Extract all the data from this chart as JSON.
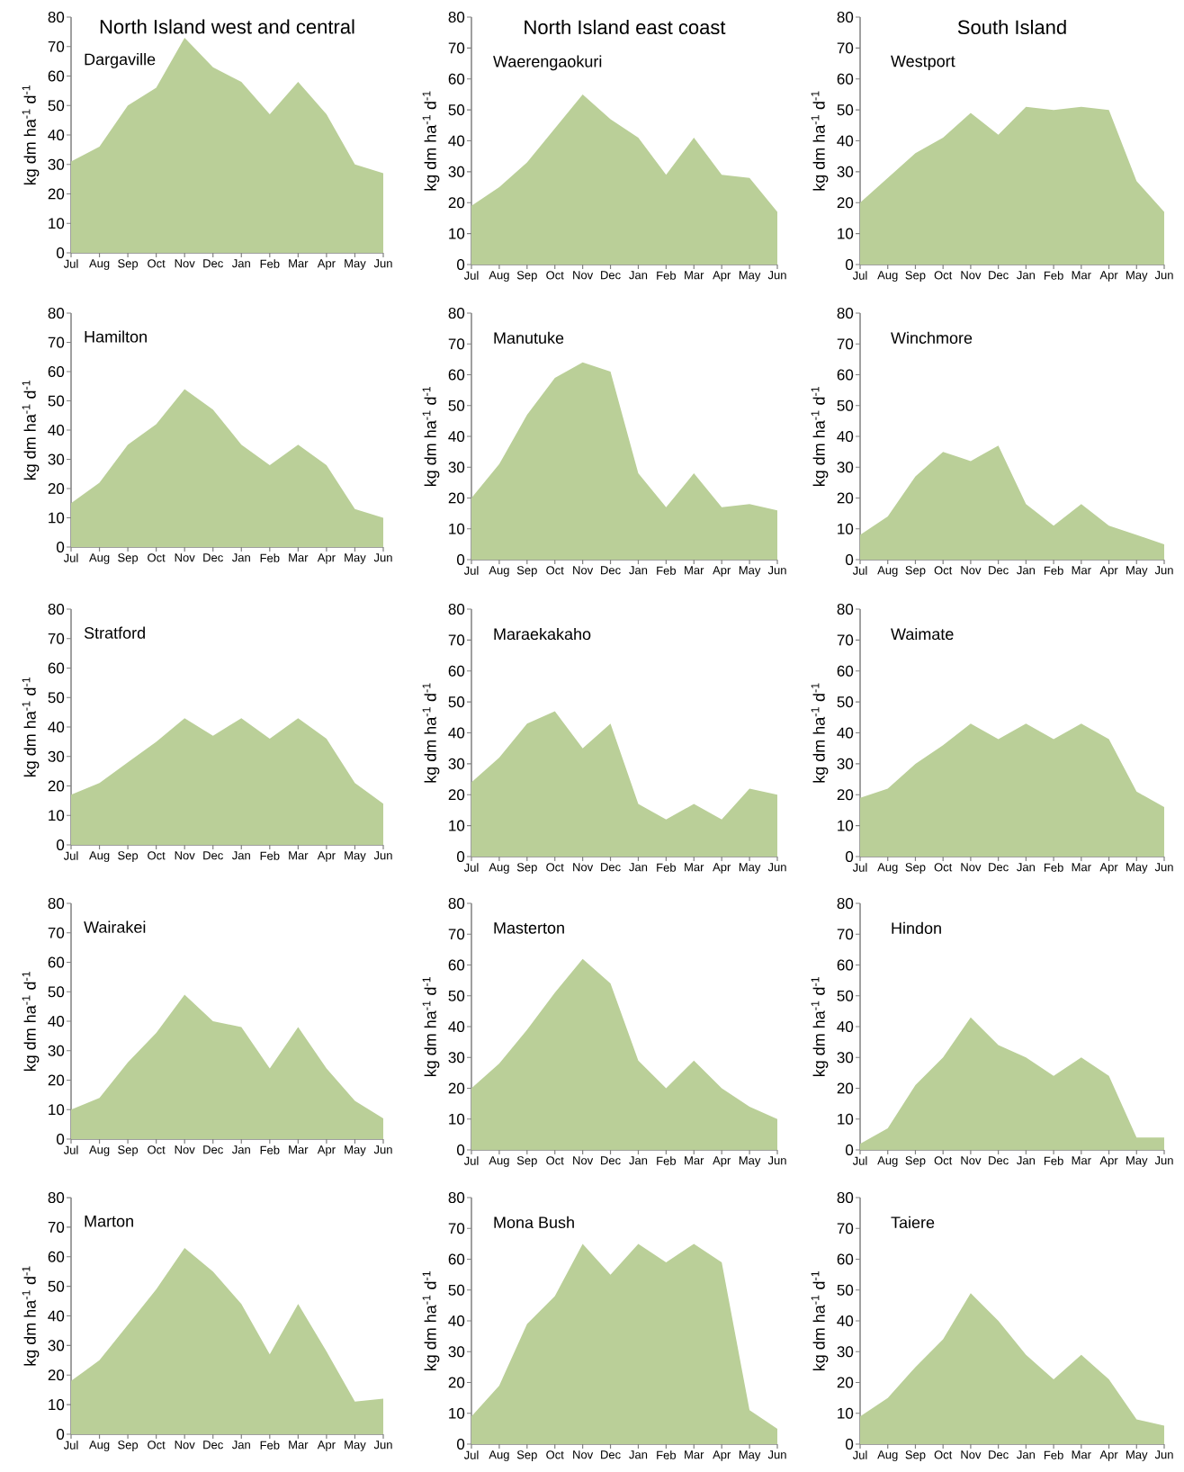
{
  "chart_data": [
    {
      "type": "area",
      "title": "North Island west and central",
      "subtitle": "Dargaville",
      "ylabel": "kg dm ha$^{-1}$ d$^{-1}$",
      "categories": [
        "Jul",
        "Aug",
        "Sep",
        "Oct",
        "Nov",
        "Dec",
        "Jan",
        "Feb",
        "Mar",
        "Apr",
        "May",
        "Jun"
      ],
      "values": [
        31,
        36,
        50,
        56,
        73,
        63,
        58,
        47,
        58,
        47,
        30,
        27
      ],
      "color": "#bacf98",
      "ylim": [
        0,
        80
      ],
      "yticks": [
        0,
        10,
        20,
        30,
        40,
        50,
        60,
        70,
        80
      ]
    },
    {
      "type": "area",
      "title": "North Island east coast",
      "subtitle": "Waerengaokuri",
      "ylabel": "kg dm ha$^{-1}$ d$^{-1}$",
      "categories": [
        "Jul",
        "Aug",
        "Sep",
        "Oct",
        "Nov",
        "Dec",
        "Jan",
        "Feb",
        "Mar",
        "Apr",
        "May",
        "Jun"
      ],
      "values": [
        19,
        25,
        33,
        44,
        55,
        47,
        41,
        29,
        41,
        29,
        28,
        17
      ],
      "color": "#bacf98",
      "ylim": [
        0,
        80
      ],
      "yticks": [
        0,
        10,
        20,
        30,
        40,
        50,
        60,
        70,
        80
      ]
    },
    {
      "type": "area",
      "title": "South Island",
      "subtitle": "Westport",
      "ylabel": "kg dm ha$^{-1}$ d$^{-1}$",
      "categories": [
        "Jul",
        "Aug",
        "Sep",
        "Oct",
        "Nov",
        "Dec",
        "Jan",
        "Feb",
        "Mar",
        "Apr",
        "May",
        "Jun"
      ],
      "values": [
        20,
        28,
        36,
        41,
        49,
        42,
        51,
        50,
        51,
        50,
        27,
        17
      ],
      "color": "#bacf98",
      "ylim": [
        0,
        80
      ],
      "yticks": [
        0,
        10,
        20,
        30,
        40,
        50,
        60,
        70,
        80
      ]
    },
    {
      "type": "area",
      "title": "Hamilton",
      "ylabel": "kg dm ha$^{-1}$ d$^{-1}$",
      "categories": [
        "Jul",
        "Aug",
        "Sep",
        "Oct",
        "Nov",
        "Dec",
        "Jan",
        "Feb",
        "Mar",
        "Apr",
        "May",
        "Jun"
      ],
      "values": [
        15,
        22,
        35,
        42,
        54,
        47,
        35,
        28,
        35,
        28,
        13,
        10
      ],
      "color": "#bacf98",
      "ylim": [
        0,
        80
      ],
      "yticks": [
        0,
        10,
        20,
        30,
        40,
        50,
        60,
        70,
        80
      ]
    },
    {
      "type": "area",
      "title": "Manutuke",
      "ylabel": "kg dm ha$^{-1}$ d$^{-1}$",
      "categories": [
        "Jul",
        "Aug",
        "Sep",
        "Oct",
        "Nov",
        "Dec",
        "Jan",
        "Feb",
        "Mar",
        "Apr",
        "May",
        "Jun"
      ],
      "values": [
        20,
        31,
        47,
        59,
        64,
        61,
        28,
        17,
        28,
        17,
        18,
        16
      ],
      "color": "#bacf98",
      "ylim": [
        0,
        80
      ],
      "yticks": [
        0,
        10,
        20,
        30,
        40,
        50,
        60,
        70,
        80
      ]
    },
    {
      "type": "area",
      "title": "Winchmore",
      "ylabel": "kg dm ha$^{-1}$ d$^{-1}$",
      "categories": [
        "Jul",
        "Aug",
        "Sep",
        "Oct",
        "Nov",
        "Dec",
        "Jan",
        "Feb",
        "Mar",
        "Apr",
        "May",
        "Jun"
      ],
      "values": [
        8,
        14,
        27,
        35,
        32,
        37,
        18,
        11,
        18,
        11,
        8,
        5
      ],
      "color": "#bacf98",
      "ylim": [
        0,
        80
      ],
      "yticks": [
        0,
        10,
        20,
        30,
        40,
        50,
        60,
        70,
        80
      ]
    },
    {
      "type": "area",
      "title": "Stratford",
      "ylabel": "kg dm ha$^{-1}$ d$^{-1}$",
      "categories": [
        "Jul",
        "Aug",
        "Sep",
        "Oct",
        "Nov",
        "Dec",
        "Jan",
        "Feb",
        "Mar",
        "Apr",
        "May",
        "Jun"
      ],
      "values": [
        17,
        21,
        28,
        35,
        43,
        37,
        43,
        36,
        43,
        36,
        21,
        14
      ],
      "color": "#bacf98",
      "ylim": [
        0,
        80
      ],
      "yticks": [
        0,
        10,
        20,
        30,
        40,
        50,
        60,
        70,
        80
      ]
    },
    {
      "type": "area",
      "title": "Maraekakaho",
      "ylabel": "kg dm ha$^{-1}$ d$^{-1}$",
      "categories": [
        "Jul",
        "Aug",
        "Sep",
        "Oct",
        "Nov",
        "Dec",
        "Jan",
        "Feb",
        "Mar",
        "Apr",
        "May",
        "Jun"
      ],
      "values": [
        24,
        32,
        43,
        47,
        35,
        43,
        17,
        12,
        17,
        12,
        22,
        20
      ],
      "color": "#bacf98",
      "ylim": [
        0,
        80
      ],
      "yticks": [
        0,
        10,
        20,
        30,
        40,
        50,
        60,
        70,
        80
      ]
    },
    {
      "type": "area",
      "title": "Waimate",
      "ylabel": "kg dm ha$^{-1}$ d$^{-1}$",
      "categories": [
        "Jul",
        "Aug",
        "Sep",
        "Oct",
        "Nov",
        "Dec",
        "Jan",
        "Feb",
        "Mar",
        "Apr",
        "May",
        "Jun"
      ],
      "values": [
        19,
        22,
        30,
        36,
        43,
        38,
        43,
        38,
        43,
        38,
        21,
        16
      ],
      "color": "#bacf98",
      "ylim": [
        0,
        80
      ],
      "yticks": [
        0,
        10,
        20,
        30,
        40,
        50,
        60,
        70,
        80
      ]
    },
    {
      "type": "area",
      "title": "Wairakei",
      "ylabel": "kg dm ha$^{-1}$ d$^{-1}$",
      "categories": [
        "Jul",
        "Aug",
        "Sep",
        "Oct",
        "Nov",
        "Dec",
        "Jan",
        "Feb",
        "Mar",
        "Apr",
        "May",
        "Jun"
      ],
      "values": [
        10,
        14,
        26,
        36,
        49,
        40,
        38,
        24,
        38,
        24,
        13,
        7
      ],
      "color": "#bacf98",
      "ylim": [
        0,
        80
      ],
      "yticks": [
        0,
        10,
        20,
        30,
        40,
        50,
        60,
        70,
        80
      ]
    },
    {
      "type": "area",
      "title": "Masterton",
      "ylabel": "kg dm ha$^{-1}$ d$^{-1}$",
      "categories": [
        "Jul",
        "Aug",
        "Sep",
        "Oct",
        "Nov",
        "Dec",
        "Jan",
        "Feb",
        "Mar",
        "Apr",
        "May",
        "Jun"
      ],
      "values": [
        20,
        28,
        39,
        51,
        62,
        54,
        29,
        20,
        29,
        20,
        14,
        10
      ],
      "color": "#bacf98",
      "ylim": [
        0,
        80
      ],
      "yticks": [
        0,
        10,
        20,
        30,
        40,
        50,
        60,
        70,
        80
      ]
    },
    {
      "type": "area",
      "title": "Hindon",
      "ylabel": "kg dm ha$^{-1}$ d$^{-1}$",
      "categories": [
        "Jul",
        "Aug",
        "Sep",
        "Oct",
        "Nov",
        "Dec",
        "Jan",
        "Feb",
        "Mar",
        "Apr",
        "May",
        "Jun"
      ],
      "values": [
        2,
        7,
        21,
        30,
        43,
        34,
        30,
        24,
        30,
        24,
        4,
        4
      ],
      "color": "#bacf98",
      "ylim": [
        0,
        80
      ],
      "yticks": [
        0,
        10,
        20,
        30,
        40,
        50,
        60,
        70,
        80
      ]
    },
    {
      "type": "area",
      "title": "Marton",
      "ylabel": "kg dm ha$^{-1}$ d$^{-1}$",
      "categories": [
        "Jul",
        "Aug",
        "Sep",
        "Oct",
        "Nov",
        "Dec",
        "Jan",
        "Feb",
        "Mar",
        "Apr",
        "May",
        "Jun"
      ],
      "values": [
        18,
        25,
        37,
        49,
        63,
        55,
        44,
        27,
        44,
        28,
        11,
        12
      ],
      "color": "#bacf98",
      "ylim": [
        0,
        80
      ],
      "yticks": [
        0,
        10,
        20,
        30,
        40,
        50,
        60,
        70,
        80
      ]
    },
    {
      "type": "area",
      "title": "Mona Bush",
      "ylabel": "kg dm ha$^{-1}$ d$^{-1}$",
      "categories": [
        "Jul",
        "Aug",
        "Sep",
        "Oct",
        "Nov",
        "Dec",
        "Jan",
        "Feb",
        "Mar",
        "Apr",
        "May",
        "Jun"
      ],
      "values": [
        9,
        19,
        39,
        48,
        65,
        55,
        65,
        59,
        65,
        59,
        11,
        5
      ],
      "color": "#bacf98",
      "ylim": [
        0,
        80
      ],
      "yticks": [
        0,
        10,
        20,
        30,
        40,
        50,
        60,
        70,
        80
      ]
    },
    {
      "type": "area",
      "title": "Taiere",
      "ylabel": "kg dm ha$^{-1}$ d$^{-1}$",
      "categories": [
        "Jul",
        "Aug",
        "Sep",
        "Oct",
        "Nov",
        "Dec",
        "Jan",
        "Feb",
        "Mar",
        "Apr",
        "May",
        "Jun"
      ],
      "values": [
        9,
        15,
        25,
        34,
        49,
        40,
        29,
        21,
        29,
        21,
        8,
        6
      ],
      "color": "#bacf98",
      "ylim": [
        0,
        80
      ],
      "yticks": [
        0,
        10,
        20,
        30,
        40,
        50,
        60,
        70,
        80
      ]
    }
  ]
}
